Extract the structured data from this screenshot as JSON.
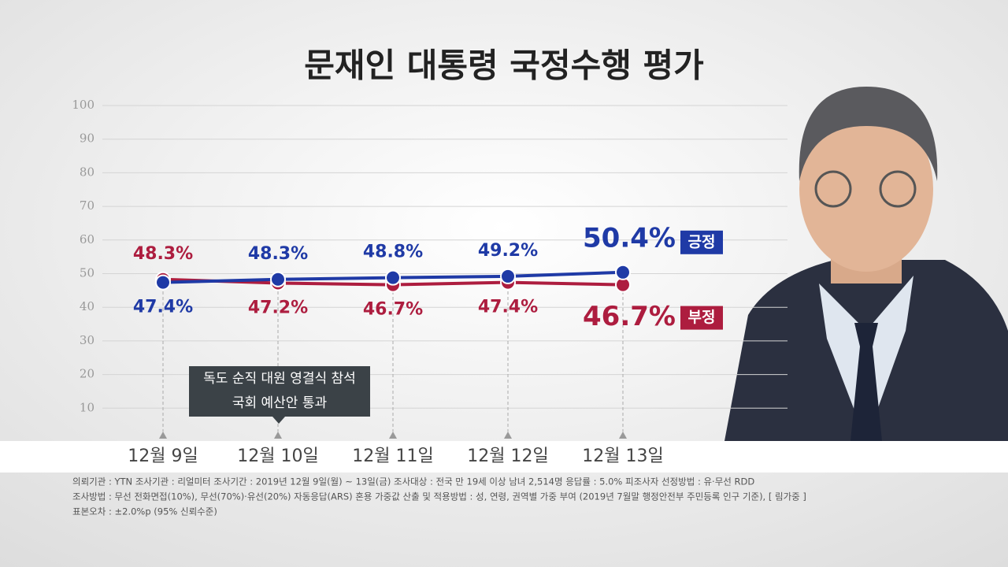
{
  "chart_data": {
    "type": "line",
    "title": "문재인 대통령 국정수행 평가",
    "categories": [
      "12월 9일",
      "12월 10일",
      "12월 11일",
      "12월 12일",
      "12월 13일"
    ],
    "series": [
      {
        "name": "긍정",
        "color": "#1f3aa6",
        "values": [
          47.4,
          48.3,
          48.8,
          49.2,
          50.4
        ],
        "value_labels": [
          "47.4%",
          "48.3%",
          "48.8%",
          "49.2%",
          "50.4%"
        ]
      },
      {
        "name": "부정",
        "color": "#ad1d3f",
        "values": [
          48.3,
          47.2,
          46.7,
          47.4,
          46.7
        ],
        "value_labels": [
          "48.3%",
          "47.2%",
          "46.7%",
          "47.4%",
          "46.7%"
        ]
      }
    ],
    "ylim": [
      0,
      100
    ],
    "yticks": [
      10,
      20,
      30,
      40,
      50,
      60,
      70,
      80,
      90,
      100
    ],
    "grid": true,
    "annotation": [
      "독도 순직 대원 영결식 참석",
      "국회 예산안 통과"
    ],
    "notes": [
      "의뢰기관 : YTN     조사기관 : 리얼미터     조사기간 : 2019년 12월 9일(월) ~ 13일(금)     조사대상 : 전국 만 19세 이상 남녀 2,514명          응답률 : 5.0%     피조사자 선정방법 : 유·무선 RDD",
      "조사방법 : 무선 전화면접(10%), 무선(70%)·유선(20%) 자동응답(ARS) 혼용     가중값 산출 및 적용방법 : 성, 연령, 권역별 가중 부여  (2019년 7월말 행정안전부 주민등록 인구 기준), [ 림가중 ]",
      "표본오차 : ±2.0%p (95% 신뢰수준)"
    ]
  }
}
